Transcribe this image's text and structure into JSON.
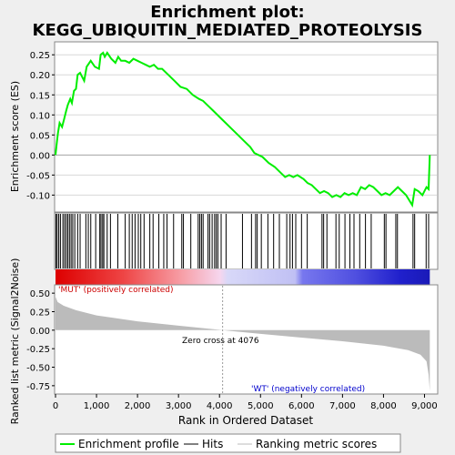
{
  "chart_data": {
    "type": "line",
    "title_lines": [
      "Enrichment plot:",
      "KEGG_UBIQUITIN_MEDIATED_PROTEOLYSIS"
    ],
    "es_panel": {
      "ylabel": "Enrichment score (ES)",
      "ylim": [
        -0.14,
        0.28
      ],
      "yticks": [
        -0.1,
        -0.05,
        0.0,
        0.05,
        0.1,
        0.15,
        0.2,
        0.25
      ],
      "ytick_labels": [
        "-0.10",
        "-0.05",
        "0.00",
        "0.05",
        "0.10",
        "0.15",
        "0.20",
        "0.25"
      ],
      "line_color": "#00ee00",
      "points": [
        [
          0,
          0.0
        ],
        [
          30,
          0.03
        ],
        [
          60,
          0.055
        ],
        [
          100,
          0.08
        ],
        [
          160,
          0.07
        ],
        [
          210,
          0.09
        ],
        [
          260,
          0.11
        ],
        [
          300,
          0.125
        ],
        [
          360,
          0.14
        ],
        [
          400,
          0.13
        ],
        [
          450,
          0.16
        ],
        [
          500,
          0.165
        ],
        [
          540,
          0.2
        ],
        [
          600,
          0.205
        ],
        [
          700,
          0.185
        ],
        [
          760,
          0.22
        ],
        [
          860,
          0.235
        ],
        [
          960,
          0.22
        ],
        [
          1060,
          0.215
        ],
        [
          1100,
          0.25
        ],
        [
          1160,
          0.255
        ],
        [
          1200,
          0.245
        ],
        [
          1260,
          0.255
        ],
        [
          1360,
          0.24
        ],
        [
          1460,
          0.23
        ],
        [
          1530,
          0.245
        ],
        [
          1600,
          0.235
        ],
        [
          1700,
          0.235
        ],
        [
          1800,
          0.23
        ],
        [
          1900,
          0.24
        ],
        [
          2000,
          0.235
        ],
        [
          2100,
          0.23
        ],
        [
          2200,
          0.225
        ],
        [
          2300,
          0.22
        ],
        [
          2400,
          0.225
        ],
        [
          2500,
          0.215
        ],
        [
          2600,
          0.215
        ],
        [
          2750,
          0.2
        ],
        [
          2900,
          0.185
        ],
        [
          3050,
          0.17
        ],
        [
          3200,
          0.165
        ],
        [
          3350,
          0.15
        ],
        [
          3500,
          0.14
        ],
        [
          3600,
          0.135
        ],
        [
          3700,
          0.125
        ],
        [
          3850,
          0.11
        ],
        [
          4000,
          0.095
        ],
        [
          4150,
          0.08
        ],
        [
          4300,
          0.065
        ],
        [
          4450,
          0.05
        ],
        [
          4600,
          0.035
        ],
        [
          4750,
          0.02
        ],
        [
          4850,
          0.005
        ],
        [
          4950,
          0.0
        ],
        [
          5050,
          -0.005
        ],
        [
          5200,
          -0.02
        ],
        [
          5350,
          -0.03
        ],
        [
          5500,
          -0.045
        ],
        [
          5600,
          -0.055
        ],
        [
          5700,
          -0.05
        ],
        [
          5800,
          -0.055
        ],
        [
          5900,
          -0.05
        ],
        [
          6050,
          -0.06
        ],
        [
          6150,
          -0.07
        ],
        [
          6250,
          -0.075
        ],
        [
          6350,
          -0.085
        ],
        [
          6450,
          -0.095
        ],
        [
          6550,
          -0.09
        ],
        [
          6650,
          -0.095
        ],
        [
          6750,
          -0.105
        ],
        [
          6850,
          -0.1
        ],
        [
          6950,
          -0.105
        ],
        [
          7050,
          -0.095
        ],
        [
          7150,
          -0.1
        ],
        [
          7250,
          -0.095
        ],
        [
          7350,
          -0.1
        ],
        [
          7450,
          -0.08
        ],
        [
          7550,
          -0.085
        ],
        [
          7650,
          -0.075
        ],
        [
          7750,
          -0.08
        ],
        [
          7850,
          -0.09
        ],
        [
          7950,
          -0.1
        ],
        [
          8050,
          -0.095
        ],
        [
          8150,
          -0.1
        ],
        [
          8250,
          -0.09
        ],
        [
          8350,
          -0.08
        ],
        [
          8450,
          -0.09
        ],
        [
          8550,
          -0.1
        ],
        [
          8700,
          -0.125
        ],
        [
          8760,
          -0.085
        ],
        [
          8850,
          -0.09
        ],
        [
          8950,
          -0.1
        ],
        [
          9050,
          -0.08
        ],
        [
          9100,
          -0.085
        ],
        [
          9130,
          0.0
        ]
      ]
    },
    "hits": [
      10,
      40,
      80,
      120,
      180,
      220,
      260,
      300,
      340,
      380,
      420,
      470,
      540,
      600,
      740,
      800,
      860,
      980,
      1080,
      1110,
      1150,
      1180,
      1260,
      1340,
      1520,
      1700,
      1800,
      1870,
      1940,
      2020,
      2080,
      2160,
      2300,
      2380,
      2520,
      2640,
      2720,
      2880,
      3080,
      3120,
      3300,
      3480,
      3520,
      3560,
      3600,
      3720,
      3760,
      3820,
      3880,
      3920,
      3960,
      4040,
      4160,
      4560,
      4780,
      4880,
      4920,
      5020,
      5180,
      5320,
      5460,
      5640,
      5720,
      5780,
      5860,
      6000,
      6140,
      6500,
      6540,
      6620,
      6840,
      6920,
      7060,
      7180,
      7280,
      7420,
      7560,
      7700,
      8020,
      8060,
      8300,
      8340,
      8720,
      8760,
      9040,
      9100
    ],
    "rank_panel": {
      "ylabel": "Ranked list metric (Signal2Noise)",
      "ylim": [
        -0.85,
        0.6
      ],
      "yticks": [
        -0.75,
        -0.5,
        -0.25,
        0.0,
        0.25,
        0.5
      ],
      "ytick_labels": [
        "-0.75",
        "-0.50",
        "-0.25",
        "0.00",
        "0.25",
        "0.50"
      ],
      "metric_curve": [
        [
          0,
          0.45
        ],
        [
          50,
          0.38
        ],
        [
          200,
          0.33
        ],
        [
          500,
          0.27
        ],
        [
          1000,
          0.2
        ],
        [
          2000,
          0.12
        ],
        [
          3000,
          0.06
        ],
        [
          4076,
          0.0
        ],
        [
          5000,
          -0.05
        ],
        [
          6000,
          -0.1
        ],
        [
          7000,
          -0.15
        ],
        [
          8000,
          -0.21
        ],
        [
          8600,
          -0.27
        ],
        [
          8900,
          -0.33
        ],
        [
          9050,
          -0.42
        ],
        [
          9100,
          -0.6
        ],
        [
          9130,
          -0.82
        ]
      ],
      "pos_label": "'MUT' (positively correlated)",
      "neg_label": "'WT' (negatively correlated)",
      "zero_cross_label": "Zero cross at 4076",
      "zero_cross": 4076
    },
    "xlabel": "Rank in Ordered Dataset",
    "xlim": [
      0,
      9300
    ],
    "xticks": [
      0,
      1000,
      2000,
      3000,
      4000,
      5000,
      6000,
      7000,
      8000,
      9000
    ],
    "xtick_labels": [
      "0",
      "1,000",
      "2,000",
      "3,000",
      "4,000",
      "5,000",
      "6,000",
      "7,000",
      "8,000",
      "9,000"
    ],
    "n_genes": 9130,
    "legend": {
      "placement": "bottom",
      "entries": [
        {
          "label": "Enrichment profile",
          "color": "#00ee00"
        },
        {
          "label": "Hits",
          "color": "#000000"
        },
        {
          "label": "Ranking metric scores",
          "color": "#bbbbbb"
        }
      ]
    }
  }
}
